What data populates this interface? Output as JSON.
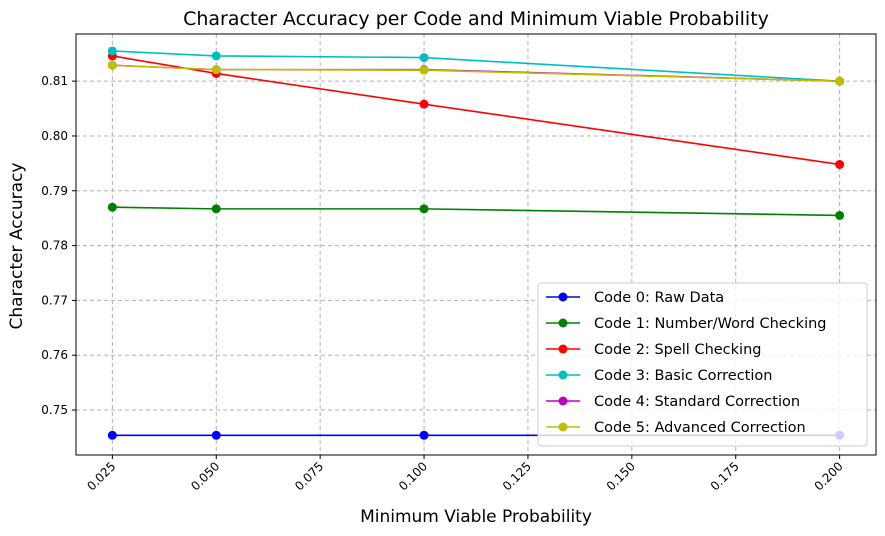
{
  "chart_data": {
    "type": "line",
    "title": "Character Accuracy per Code and Minimum Viable Probability",
    "xlabel": "Minimum Viable Probability",
    "ylabel": "Character Accuracy",
    "x": [
      0.025,
      0.05,
      0.1,
      0.2
    ],
    "xlim": [
      0.01625,
      0.20875
    ],
    "ylim": [
      0.7418,
      0.8186
    ],
    "xticks": [
      "0.025",
      "0.050",
      "0.075",
      "0.100",
      "0.125",
      "0.150",
      "0.175",
      "0.200"
    ],
    "xtick_values": [
      0.025,
      0.05,
      0.075,
      0.1,
      0.125,
      0.15,
      0.175,
      0.2
    ],
    "yticks": [
      "0.75",
      "0.76",
      "0.77",
      "0.78",
      "0.79",
      "0.80",
      "0.81"
    ],
    "ytick_values": [
      0.75,
      0.76,
      0.77,
      0.78,
      0.79,
      0.8,
      0.81
    ],
    "grid": true,
    "legend_position": "lower-right",
    "series": [
      {
        "name": "Code 0: Raw Data",
        "color": "#0000ff",
        "values": [
          0.7454,
          0.7454,
          0.7454,
          0.7454
        ]
      },
      {
        "name": "Code 1: Number/Word Checking",
        "color": "#008000",
        "values": [
          0.787,
          0.7867,
          0.7867,
          0.7855
        ]
      },
      {
        "name": "Code 2: Spell Checking",
        "color": "#ff0000",
        "values": [
          0.8146,
          0.8114,
          0.8058,
          0.7948
        ]
      },
      {
        "name": "Code 3: Basic Correction",
        "color": "#00bfbf",
        "values": [
          0.8155,
          0.8146,
          0.8143,
          0.81
        ]
      },
      {
        "name": "Code 4: Standard Correction",
        "color": "#bf00bf",
        "values": [
          0.8129,
          0.8121,
          0.8121,
          0.81
        ]
      },
      {
        "name": "Code 5: Advanced Correction",
        "color": "#bfbf00",
        "values": [
          0.8129,
          0.8121,
          0.812,
          0.81
        ]
      }
    ]
  }
}
